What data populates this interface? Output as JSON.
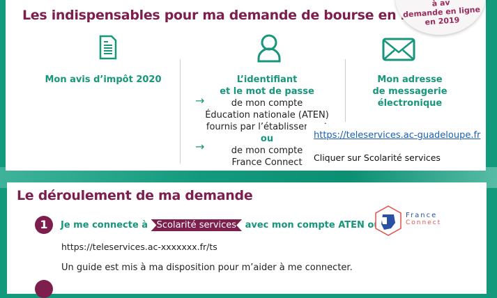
{
  "badge": {
    "lines": [
      "à av",
      "demande en ligne",
      "en 2019"
    ]
  },
  "section1": {
    "title": "Les indispensables pour ma demande de bourse en ligne",
    "col1": {
      "icon": "document-icon",
      "label": "Mon avis d’impôt 2020"
    },
    "col2": {
      "icon": "user-icon",
      "label1": "L’identifiant",
      "label2": "et le mot de passe",
      "line1": "de mon compte",
      "line2": "Éducation nationale (ATEN)",
      "line3": "fournis par l’établissement",
      "or": "ou",
      "line4": "de mon compte",
      "line5": "France Connect"
    },
    "col3": {
      "icon": "envelope-icon",
      "label1": "Mon adresse",
      "label2": "de messagerie",
      "label3": "électronique"
    },
    "overlay": {
      "link": "https://teleservices.ac-guadeloupe.fr",
      "instruction": "Cliquer sur Scolarité services"
    }
  },
  "section2": {
    "title": "Le déroulement de ma demande",
    "step1": {
      "number": "1",
      "text_before": "Je me connecte à",
      "tag": "Scolarité services",
      "text_after": "avec mon compte ATEN ou",
      "logo_text1": "France",
      "logo_text2": "Connect",
      "url": "https://teleservices.ac-xxxxxxx.fr/ts",
      "guide": "Un guide est mis à ma disposition pour m’aider à me connecter."
    }
  },
  "colors": {
    "green": "#139a7c",
    "maroon": "#7d1e4d"
  }
}
